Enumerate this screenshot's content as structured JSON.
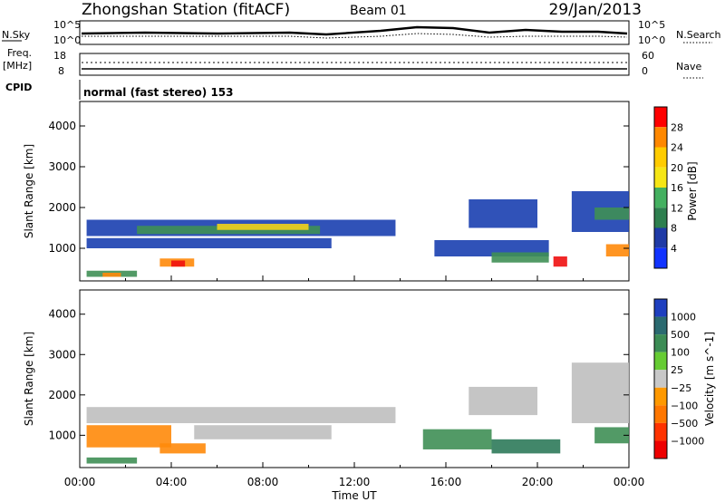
{
  "header": {
    "station": "Zhongshan Station (fitACF)",
    "beam": "Beam 01",
    "date": "29/Jan/2013"
  },
  "summary": {
    "nsky_label": "N.Sky",
    "nsearch_label": "N.Search",
    "noise_tick_hi": "10^5",
    "noise_tick_lo": "10^0",
    "freq_label": "Freq.",
    "freq_unit": "[MHz]",
    "freq_ticks": [
      "18",
      "8"
    ],
    "nave_label": "Nave",
    "nave_ticks": [
      "60",
      "0"
    ],
    "cpid_label": "CPID",
    "cpid_value": "normal (fast stereo) 153"
  },
  "colors": {
    "gate_blue": "#1a3fb0",
    "gate_green": "#3f8f55",
    "gate_yellow": "#f2d21c",
    "gate_orange": "#ff8a0a",
    "gate_red": "#f01010",
    "ground_scatter": "#bfbfbf"
  },
  "chart_data": [
    {
      "type": "heatmap",
      "name": "power",
      "ylabel": "Slant Range [km]",
      "xlabel": "",
      "x_ticks": [
        "00:00",
        "04:00",
        "08:00",
        "12:00",
        "16:00",
        "20:00",
        "00:00"
      ],
      "y_ticks": [
        1000,
        2000,
        3000,
        4000
      ],
      "ylim": [
        200,
        4600
      ],
      "xlim_hours": [
        0,
        24
      ],
      "colorbar": {
        "label": "Power [dB]",
        "ticks": [
          "28",
          "24",
          "20",
          "16",
          "12",
          "8",
          "4"
        ],
        "colors": [
          "#ff0000",
          "#ff8800",
          "#ffcc00",
          "#f6e616",
          "#44b060",
          "#2e7f4f",
          "#1f3aa6",
          "#1133ff"
        ]
      },
      "bands": [
        {
          "t0": 0.3,
          "t1": 13.8,
          "r0": 1300,
          "r1": 1700,
          "level": "blue"
        },
        {
          "t0": 0.3,
          "t1": 11.0,
          "r0": 1000,
          "r1": 1250,
          "level": "blue"
        },
        {
          "t0": 2.5,
          "t1": 10.5,
          "r0": 1350,
          "r1": 1550,
          "level": "green"
        },
        {
          "t0": 6.0,
          "t1": 10.0,
          "r0": 1450,
          "r1": 1600,
          "level": "yellow"
        },
        {
          "t0": 3.5,
          "t1": 5.0,
          "r0": 550,
          "r1": 750,
          "level": "orange"
        },
        {
          "t0": 4.0,
          "t1": 4.6,
          "r0": 550,
          "r1": 700,
          "level": "red"
        },
        {
          "t0": 0.3,
          "t1": 2.5,
          "r0": 300,
          "r1": 450,
          "level": "green"
        },
        {
          "t0": 1.0,
          "t1": 1.8,
          "r0": 300,
          "r1": 400,
          "level": "orange"
        },
        {
          "t0": 15.5,
          "t1": 20.5,
          "r0": 800,
          "r1": 1200,
          "level": "blue"
        },
        {
          "t0": 17.0,
          "t1": 20.0,
          "r0": 1500,
          "r1": 2200,
          "level": "blue"
        },
        {
          "t0": 18.0,
          "t1": 20.5,
          "r0": 650,
          "r1": 900,
          "level": "green"
        },
        {
          "t0": 20.7,
          "t1": 21.3,
          "r0": 550,
          "r1": 800,
          "level": "red"
        },
        {
          "t0": 21.5,
          "t1": 24.0,
          "r0": 1400,
          "r1": 2400,
          "level": "blue"
        },
        {
          "t0": 22.5,
          "t1": 24.0,
          "r0": 1700,
          "r1": 2000,
          "level": "green"
        },
        {
          "t0": 23.0,
          "t1": 24.0,
          "r0": 800,
          "r1": 1100,
          "level": "orange"
        }
      ]
    },
    {
      "type": "heatmap",
      "name": "velocity",
      "ylabel": "Slant Range [km]",
      "xlabel": "Time UT",
      "x_ticks": [
        "00:00",
        "04:00",
        "08:00",
        "12:00",
        "16:00",
        "20:00",
        "00:00"
      ],
      "y_ticks": [
        1000,
        2000,
        3000,
        4000
      ],
      "ylim": [
        200,
        4600
      ],
      "xlim_hours": [
        0,
        24
      ],
      "colorbar": {
        "label": "Velocity [m s^-1]",
        "ticks": [
          "1000",
          "500",
          "100",
          "25",
          "−25",
          "−100",
          "−500",
          "−1000"
        ],
        "colors": [
          "#1e3fbf",
          "#2b6a70",
          "#3c8c55",
          "#66cc33",
          "#c8c8c8",
          "#ff9900",
          "#ff7700",
          "#ff3300",
          "#ee0000"
        ]
      },
      "bands": [
        {
          "t0": 0.3,
          "t1": 13.8,
          "r0": 1300,
          "r1": 1700,
          "level": "gray"
        },
        {
          "t0": 0.3,
          "t1": 4.0,
          "r0": 700,
          "r1": 1250,
          "level": "orange"
        },
        {
          "t0": 3.5,
          "t1": 5.5,
          "r0": 550,
          "r1": 800,
          "level": "orange"
        },
        {
          "t0": 5.0,
          "t1": 11.0,
          "r0": 900,
          "r1": 1250,
          "level": "gray"
        },
        {
          "t0": 0.3,
          "t1": 2.5,
          "r0": 300,
          "r1": 450,
          "level": "green"
        },
        {
          "t0": 15.0,
          "t1": 18.0,
          "r0": 650,
          "r1": 1150,
          "level": "green"
        },
        {
          "t0": 18.0,
          "t1": 21.0,
          "r0": 550,
          "r1": 900,
          "level": "teal"
        },
        {
          "t0": 17.0,
          "t1": 20.0,
          "r0": 1500,
          "r1": 2200,
          "level": "gray"
        },
        {
          "t0": 21.5,
          "t1": 24.0,
          "r0": 1300,
          "r1": 2800,
          "level": "gray"
        },
        {
          "t0": 22.5,
          "t1": 24.0,
          "r0": 800,
          "r1": 1200,
          "level": "green"
        }
      ]
    }
  ]
}
